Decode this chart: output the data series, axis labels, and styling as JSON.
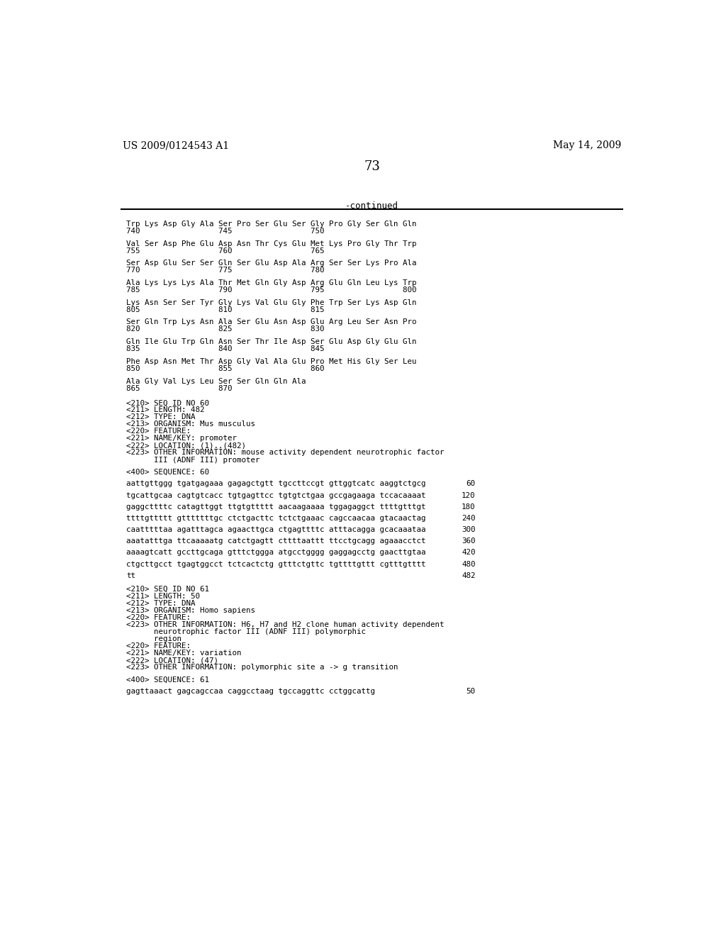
{
  "header_left": "US 2009/0124543 A1",
  "header_right": "May 14, 2009",
  "page_number": "73",
  "continued_label": "-continued",
  "background_color": "#ffffff",
  "text_color": "#000000",
  "content_lines": [
    [
      "Trp Lys Asp Gly Ala Ser Pro Ser Glu Ser Gly Pro Gly Ser Gln Gln",
      "740                 745                 750"
    ],
    [
      "Val Ser Asp Phe Glu Asp Asn Thr Cys Glu Met Lys Pro Gly Thr Trp",
      "755                 760                 765"
    ],
    [
      "Ser Asp Glu Ser Ser Gln Ser Glu Asp Ala Arg Ser Ser Lys Pro Ala",
      "770                 775                 780"
    ],
    [
      "Ala Lys Lys Lys Ala Thr Met Gln Gly Asp Arg Glu Gln Leu Lys Trp",
      "785                 790                 795                 800"
    ],
    [
      "Lys Asn Ser Ser Tyr Gly Lys Val Glu Gly Phe Trp Ser Lys Asp Gln",
      "805                 810                 815"
    ],
    [
      "Ser Gln Trp Lys Asn Ala Ser Glu Asn Asp Glu Arg Leu Ser Asn Pro",
      "820                 825                 830"
    ],
    [
      "Gln Ile Glu Trp Gln Asn Ser Thr Ile Asp Ser Glu Asp Gly Glu Gln",
      "835                 840                 845"
    ],
    [
      "Phe Asp Asn Met Thr Asp Gly Val Ala Glu Pro Met His Gly Ser Leu",
      "850                 855                 860"
    ],
    [
      "Ala Gly Val Lys Leu Ser Ser Gln Gln Ala",
      "865                 870"
    ]
  ],
  "seq60_meta": [
    "<210> SEQ ID NO 60",
    "<211> LENGTH: 482",
    "<212> TYPE: DNA",
    "<213> ORGANISM: Mus musculus",
    "<220> FEATURE:",
    "<221> NAME/KEY: promoter",
    "<222> LOCATION: (1)..(482)",
    "<223> OTHER INFORMATION: mouse activity dependent neurotrophic factor",
    "      III (ADNF III) promoter"
  ],
  "seq60_label": "<400> SEQUENCE: 60",
  "seq60_sequences": [
    [
      "aattgttggg tgatgagaaa gagagctgtt tgccttccgt gttggtcatc aaggtctgcg",
      "60"
    ],
    [
      "tgcattgcaa cagtgtcacc tgtgagttcc tgtgtctgaa gccgagaaga tccacaaaat",
      "120"
    ],
    [
      "gaggcttttc catagttggt ttgtgttttt aacaagaaaa tggagaggct ttttgtttgt",
      "180"
    ],
    [
      "ttttgttttt gtttttttgc ctctgacttc tctctgaaac cagccaacaa gtacaactag",
      "240"
    ],
    [
      "caatttttaa agatttagca agaacttgca ctgagttttc atttacagga gcacaaataa",
      "300"
    ],
    [
      "aaatatttga ttcaaaaatg catctgagtt cttttaattt ttcctgcagg agaaacctct",
      "360"
    ],
    [
      "aaaagtcatt gccttgcaga gtttctggga atgcctgggg gaggagcctg gaacttgtaa",
      "420"
    ],
    [
      "ctgcttgcct tgagtggcct tctcactctg gtttctgttc tgttttgttt cgtttgtttt",
      "480"
    ],
    [
      "tt",
      "482"
    ]
  ],
  "seq61_meta": [
    "<210> SEQ ID NO 61",
    "<211> LENGTH: 50",
    "<212> TYPE: DNA",
    "<213> ORGANISM: Homo sapiens",
    "<220> FEATURE:",
    "<223> OTHER INFORMATION: H6, H7 and H2 clone human activity dependent",
    "      neurotrophic factor III (ADNF III) polymorphic",
    "      region",
    "<220> FEATURE:",
    "<221> NAME/KEY: variation",
    "<222> LOCATION: (47)",
    "<223> OTHER INFORMATION: polymorphic site a -> g transition"
  ],
  "seq61_label": "<400> SEQUENCE: 61",
  "seq61_sequences": [
    [
      "gagttaaact gagcagccaa caggcctaag tgccaggttc cctggcattg",
      "50"
    ]
  ]
}
